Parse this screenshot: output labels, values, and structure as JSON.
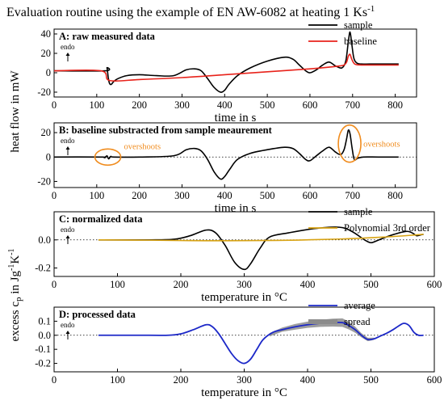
{
  "figure": {
    "title_prefix": "Evaluation routine using the example of EN AW-6082 at heating 1 Ks",
    "title_sup": "-1",
    "ylabel_upper": "heat flow in mW",
    "ylabel_lower_main": "excess c",
    "ylabel_lower_sub": "p",
    "ylabel_lower_unit": " in Jg",
    "ylabel_lower_sup1": "-1",
    "ylabel_lower_k": "K",
    "ylabel_lower_sup2": "-1",
    "endo_label": "endo",
    "colors": {
      "sample": "#000000",
      "baseline": "#e8231b",
      "polynomial": "#d8a314",
      "average": "#1c28c8",
      "spread": "#8c8c8c",
      "annotation": "#f08c1e"
    }
  },
  "chart_data": [
    {
      "type": "line",
      "panel_title": "A: raw measured data",
      "xlabel": "time in s",
      "xlim": [
        0,
        850
      ],
      "ylim": [
        -25,
        45
      ],
      "xticks": [
        0,
        100,
        200,
        300,
        400,
        500,
        600,
        700,
        800
      ],
      "yticks": [
        -20,
        0,
        20,
        40
      ],
      "legend_position": "top-right",
      "series": [
        {
          "name": "sample",
          "color": "#000000",
          "x": [
            0,
            120,
            124,
            127,
            130,
            134,
            140,
            150,
            170,
            200,
            240,
            280,
            310,
            330,
            345,
            360,
            375,
            390,
            400,
            410,
            430,
            460,
            500,
            540,
            560,
            575,
            590,
            600,
            615,
            630,
            645,
            660,
            675,
            684,
            690,
            694,
            698,
            703,
            710,
            720,
            740,
            770,
            800,
            808
          ],
          "values": [
            2,
            2,
            5,
            -5,
            -11,
            -12,
            -9,
            -6,
            -3,
            -2,
            -3,
            -3,
            3,
            4,
            2,
            -6,
            -15,
            -20,
            -18,
            -12,
            -3,
            5,
            12,
            16,
            14,
            8,
            2,
            0,
            3,
            8,
            11,
            7,
            5,
            12,
            32,
            42,
            30,
            15,
            10,
            9,
            9,
            9,
            9,
            9
          ]
        },
        {
          "name": "baseline",
          "color": "#e8231b",
          "x": [
            0,
            110,
            130,
            200,
            300,
            400,
            500,
            600,
            650,
            670,
            680,
            686,
            690,
            694,
            698,
            705,
            720,
            760,
            808
          ],
          "values": [
            2,
            2,
            -8,
            -7,
            -5,
            -2,
            1,
            4,
            6,
            7,
            8,
            11,
            17,
            19,
            14,
            9,
            8,
            8,
            8
          ]
        }
      ]
    },
    {
      "type": "line",
      "panel_title": "B: baseline substracted from sample meaurement",
      "xlabel": "time in s",
      "xlim": [
        0,
        850
      ],
      "ylim": [
        -25,
        28
      ],
      "xticks": [
        0,
        100,
        200,
        300,
        400,
        500,
        600,
        700,
        800
      ],
      "yticks": [
        -20,
        0,
        20
      ],
      "annotations": [
        "overshoots",
        "overshoots"
      ],
      "series": [
        {
          "name": "",
          "color": "#000000",
          "x": [
            0,
            110,
            118,
            124,
            128,
            133,
            140,
            200,
            280,
            310,
            330,
            345,
            360,
            375,
            390,
            400,
            412,
            430,
            460,
            500,
            540,
            560,
            575,
            590,
            600,
            615,
            630,
            645,
            660,
            672,
            680,
            686,
            690,
            694,
            699,
            704,
            712,
            725,
            760,
            808
          ],
          "values": [
            0,
            0,
            -0.5,
            1,
            -1.5,
            0.5,
            0,
            0,
            1,
            6,
            7,
            5,
            -2,
            -12,
            -18,
            -16,
            -10,
            -2,
            3,
            6,
            8,
            7,
            3,
            -2,
            -3,
            1,
            5,
            8,
            4,
            2,
            6,
            15,
            22,
            19,
            7,
            -2,
            -1,
            0,
            0,
            0
          ]
        }
      ]
    },
    {
      "type": "line",
      "panel_title": "C: normalized data",
      "xlabel": "temperature in °C",
      "xlim": [
        0,
        600
      ],
      "ylim": [
        -0.26,
        0.2
      ],
      "xticks": [
        0,
        100,
        200,
        300,
        400,
        500,
        600
      ],
      "yticks": [
        -0.2,
        0.0
      ],
      "legend_position": "top-right",
      "series": [
        {
          "name": "sample",
          "color": "#000000",
          "x": [
            70,
            150,
            190,
            215,
            240,
            255,
            270,
            285,
            300,
            310,
            325,
            340,
            370,
            410,
            450,
            470,
            490,
            500,
            510,
            530,
            555,
            565,
            572,
            578,
            583
          ],
          "values": [
            0,
            0,
            0.005,
            0.03,
            0.07,
            0.05,
            -0.04,
            -0.16,
            -0.21,
            -0.17,
            -0.06,
            0.02,
            0.05,
            0.08,
            0.09,
            0.06,
            0.0,
            -0.02,
            -0.005,
            0.03,
            0.06,
            0.05,
            0.03,
            0.035,
            0.04
          ]
        },
        {
          "name": "Polynomial 3rd order",
          "color": "#d8a314",
          "x": [
            70,
            150,
            250,
            350,
            450,
            520,
            570,
            583
          ],
          "values": [
            0,
            -0.002,
            -0.006,
            -0.004,
            0.006,
            0.02,
            0.035,
            0.04
          ]
        }
      ]
    },
    {
      "type": "line",
      "panel_title": "D: processed data",
      "xlabel": "temperature in °C",
      "xlim": [
        0,
        600
      ],
      "ylim": [
        -0.26,
        0.2
      ],
      "xticks": [
        0,
        100,
        200,
        300,
        400,
        500,
        600
      ],
      "yticks": [
        -0.2,
        -0.1,
        0.0,
        0.1
      ],
      "legend_position": "top-right",
      "series": [
        {
          "name": "average",
          "color": "#1c28c8",
          "x": [
            70,
            150,
            180,
            200,
            220,
            240,
            250,
            260,
            270,
            280,
            290,
            300,
            310,
            320,
            330,
            345,
            360,
            380,
            400,
            420,
            440,
            455,
            465,
            475,
            485,
            495,
            505,
            515,
            525,
            535,
            545,
            552,
            560,
            568,
            575,
            583
          ],
          "values": [
            0,
            0,
            0,
            0.01,
            0.04,
            0.075,
            0.06,
            0.01,
            -0.06,
            -0.13,
            -0.18,
            -0.2,
            -0.17,
            -0.1,
            -0.03,
            0.02,
            0.04,
            0.06,
            0.075,
            0.085,
            0.09,
            0.09,
            0.07,
            0.04,
            0.0,
            -0.03,
            -0.025,
            -0.005,
            0.015,
            0.04,
            0.07,
            0.085,
            0.07,
            0.02,
            0.0,
            0.0
          ]
        },
        {
          "name": "spread",
          "color": "#8c8c8c",
          "x": [
            340,
            360,
            380,
            400,
            420,
            440,
            455,
            465,
            475,
            485,
            495,
            505
          ],
          "values": [
            0.012,
            0.015,
            0.02,
            0.022,
            0.025,
            0.028,
            0.03,
            0.028,
            0.022,
            0.015,
            0.012,
            0.008
          ]
        }
      ]
    }
  ]
}
